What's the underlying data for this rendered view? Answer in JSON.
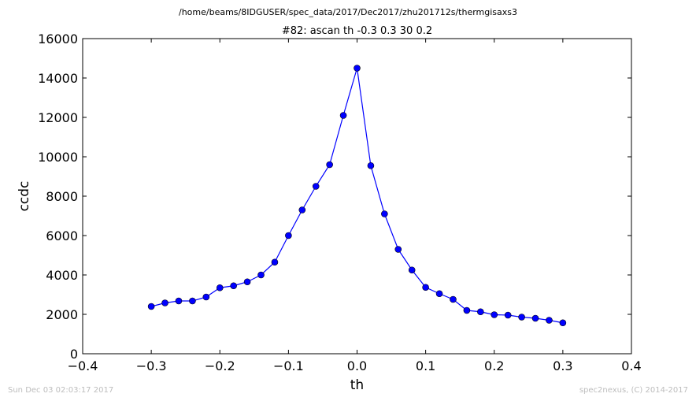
{
  "figure": {
    "suptitle": "/home/beams/8IDGUSER/spec_data/2017/Dec2017/zhu201712s/thermgisaxs3",
    "footer_left": "Sun Dec 03 02:03:17 2017",
    "footer_right": "spec2nexus, (C) 2014-2017"
  },
  "chart_data": {
    "type": "line",
    "title": "#82: ascan  th -0.3 0.3  30 0.2",
    "xlabel": "th",
    "ylabel": "ccdc",
    "xlim": [
      -0.4,
      0.4
    ],
    "ylim": [
      0,
      16000
    ],
    "xticks": [
      -0.4,
      -0.3,
      -0.2,
      -0.1,
      0.0,
      0.1,
      0.2,
      0.3,
      0.4
    ],
    "xtick_labels": [
      "−0.4",
      "−0.3",
      "−0.2",
      "−0.1",
      "0.0",
      "0.1",
      "0.2",
      "0.3",
      "0.4"
    ],
    "yticks": [
      0,
      2000,
      4000,
      6000,
      8000,
      10000,
      12000,
      14000,
      16000
    ],
    "ytick_labels": [
      "0",
      "2000",
      "4000",
      "6000",
      "8000",
      "10000",
      "12000",
      "14000",
      "16000"
    ],
    "grid": false,
    "series": [
      {
        "color": "#0000ff",
        "marker": "circle",
        "x": [
          -0.3,
          -0.28,
          -0.26,
          -0.24,
          -0.22,
          -0.2,
          -0.18,
          -0.16,
          -0.14,
          -0.12,
          -0.1,
          -0.08,
          -0.06,
          -0.04,
          -0.02,
          0.0,
          0.02,
          0.04,
          0.06,
          0.08,
          0.1,
          0.12,
          0.14,
          0.16,
          0.18,
          0.2,
          0.22,
          0.24,
          0.26,
          0.28,
          0.3
        ],
        "y": [
          2400,
          2580,
          2680,
          2680,
          2880,
          3350,
          3450,
          3650,
          4000,
          4650,
          6000,
          7300,
          8500,
          9600,
          12100,
          14500,
          9550,
          7100,
          5300,
          4250,
          3370,
          3050,
          2760,
          2200,
          2130,
          1980,
          1960,
          1860,
          1800,
          1700,
          1570
        ]
      }
    ]
  }
}
